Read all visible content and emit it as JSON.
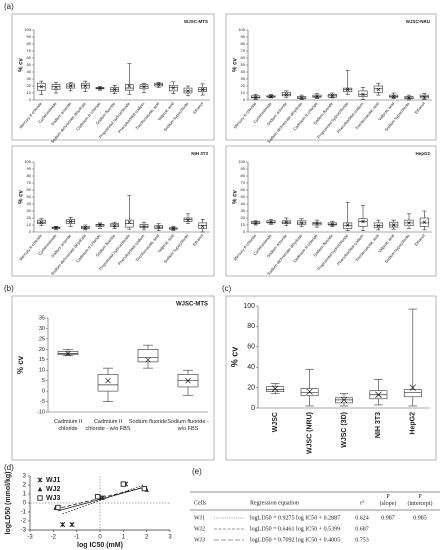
{
  "panel_labels": [
    "(a)",
    "(b)",
    "(c)",
    "(d)",
    "(e)"
  ],
  "chart_data": [
    {
      "type": "box",
      "title": "WJSC-MTS",
      "ylabel": "% cv",
      "categories": [
        "Mercury II chloride",
        "Cycloheximide",
        "Sodium arsenite",
        "Sodium dichromate dihydrate",
        "Cadmium II chloride",
        "Sodium fluoride",
        "Propranolol hydrochloride",
        "Phenobarbital sodium",
        "Trichloroacetic acid",
        "Valproic acid",
        "Sodium hypochlorite",
        "Ethanol"
      ],
      "boxes": [
        [
          8,
          14,
          19,
          24,
          27,
          19
        ],
        [
          10,
          15,
          19,
          22,
          25,
          18
        ],
        [
          13,
          17,
          20,
          23,
          25,
          20
        ],
        [
          12,
          17,
          21,
          24,
          27,
          20
        ],
        [
          14,
          16,
          17,
          18,
          19,
          17
        ],
        [
          9,
          12,
          15,
          18,
          21,
          15
        ],
        [
          8,
          14,
          17,
          22,
          52,
          20
        ],
        [
          11,
          16,
          19,
          22,
          24,
          19
        ],
        [
          18,
          20,
          22,
          24,
          25,
          22
        ],
        [
          9,
          13,
          18,
          21,
          26,
          17
        ],
        [
          6,
          10,
          13,
          17,
          20,
          13
        ],
        [
          7,
          12,
          15,
          18,
          23,
          15
        ]
      ],
      "ylim": [
        0,
        100
      ],
      "yticks": [
        0,
        10,
        20,
        30,
        40,
        50,
        60,
        70,
        80,
        90,
        100
      ],
      "color": "#ffffff"
    },
    {
      "type": "box",
      "title": "WJSC-NRU",
      "ylabel": "% cv",
      "categories": [
        "Mercury II chloride",
        "Cycloheximide",
        "Sodium arsenite",
        "Sodium dichromate dihydrate",
        "Cadmium II chloride",
        "Sodium fluoride",
        "Propranolol hydrochloride",
        "Phenobarbital sodium",
        "Trichloroacetic acid",
        "Valproic acid",
        "Sodium hypochlorite",
        "Ethanol"
      ],
      "boxes": [
        [
          1,
          3,
          4,
          6,
          8,
          4
        ],
        [
          3,
          4,
          5,
          6,
          8,
          5
        ],
        [
          4,
          6,
          8,
          11,
          13,
          8
        ],
        [
          1,
          2,
          3,
          5,
          7,
          3
        ],
        [
          2,
          4,
          5,
          7,
          9,
          5
        ],
        [
          3,
          4,
          6,
          8,
          10,
          6
        ],
        [
          8,
          12,
          15,
          17,
          42,
          15
        ],
        [
          1,
          5,
          8,
          13,
          18,
          8
        ],
        [
          7,
          11,
          16,
          20,
          24,
          15
        ],
        [
          2,
          4,
          5,
          7,
          10,
          5
        ],
        [
          0,
          2,
          3,
          5,
          7,
          3
        ],
        [
          1,
          3,
          5,
          7,
          9,
          4
        ]
      ],
      "ylim": [
        0,
        100
      ],
      "yticks": [
        0,
        10,
        20,
        30,
        40,
        50,
        60,
        70,
        80,
        90,
        100
      ],
      "color": "#ffffff"
    },
    {
      "type": "box",
      "title": "NIH 3T3",
      "ylabel": "% cv",
      "categories": [
        "Mercury II chloride",
        "Cycloheximide",
        "Sodium arsenite",
        "Sodium dichromate dihydrate",
        "Cadmium II chloride",
        "Sodium fluoride",
        "Propranolol hydrochloride",
        "Phenobarbital sodium",
        "Trichloroacetic acid",
        "Valproic acid",
        "Sodium hypochlorite",
        "Ethanol"
      ],
      "boxes": [
        [
          9,
          12,
          14,
          17,
          19,
          14
        ],
        [
          3,
          5,
          6,
          7,
          8,
          6
        ],
        [
          8,
          12,
          15,
          18,
          21,
          15
        ],
        [
          3,
          5,
          6,
          8,
          10,
          6
        ],
        [
          5,
          8,
          10,
          11,
          13,
          10
        ],
        [
          5,
          8,
          10,
          12,
          14,
          9
        ],
        [
          4,
          7,
          12,
          17,
          52,
          14
        ],
        [
          3,
          6,
          8,
          11,
          14,
          8
        ],
        [
          2,
          5,
          7,
          9,
          12,
          7
        ],
        [
          2,
          4,
          5,
          6,
          8,
          5
        ],
        [
          12,
          15,
          18,
          20,
          26,
          17
        ],
        [
          0,
          5,
          9,
          13,
          18,
          8
        ]
      ],
      "ylim": [
        0,
        100
      ],
      "yticks": [
        0,
        10,
        20,
        30,
        40,
        50,
        60,
        70,
        80,
        90,
        100
      ],
      "color": "#ffffff"
    },
    {
      "type": "box",
      "title": "HepG2",
      "ylabel": "% cv",
      "categories": [
        "Mercury II chloride",
        "Cycloheximide",
        "Sodium arsenite",
        "Sodium dichromate dihydrate",
        "Cadmium II chloride",
        "Sodium fluoride",
        "Propranolol hydrochloride",
        "Phenobarbital sodium",
        "Trichloroacetic acid",
        "Valproic acid",
        "Sodium hypochlorite",
        "Ethanol"
      ],
      "boxes": [
        [
          10,
          12,
          13,
          15,
          16,
          13
        ],
        [
          11,
          13,
          14,
          16,
          18,
          14
        ],
        [
          9,
          12,
          14,
          16,
          20,
          14
        ],
        [
          8,
          11,
          13,
          16,
          19,
          13
        ],
        [
          7,
          10,
          12,
          14,
          17,
          12
        ],
        [
          8,
          10,
          11,
          13,
          15,
          11
        ],
        [
          2,
          5,
          9,
          13,
          42,
          10
        ],
        [
          2,
          8,
          15,
          19,
          38,
          15
        ],
        [
          3,
          6,
          9,
          13,
          17,
          9
        ],
        [
          4,
          7,
          10,
          14,
          17,
          10
        ],
        [
          5,
          9,
          13,
          17,
          26,
          13
        ],
        [
          3,
          8,
          13,
          20,
          30,
          14
        ]
      ],
      "ylim": [
        0,
        100
      ],
      "yticks": [
        0,
        10,
        20,
        30,
        40,
        50,
        60,
        70,
        80,
        90,
        100
      ],
      "color": "#ffffff"
    },
    {
      "type": "box",
      "title": "WJSC-MTS",
      "ylabel": "% cv",
      "categories": [
        "Cadmium II chloride",
        "Cadmium II chloride - w/o FBS",
        "Sodium fluoride",
        "Sodium fluoride - w/o FBS"
      ],
      "boxes": [
        [
          17,
          17.5,
          18,
          19,
          20,
          18
        ],
        [
          -5,
          0,
          3,
          8,
          11,
          5
        ],
        [
          11,
          14,
          16,
          20,
          22,
          15
        ],
        [
          -2,
          2,
          5,
          8,
          10,
          5
        ]
      ],
      "ylim": [
        -10,
        35
      ],
      "yticks": [
        -10,
        -5,
        0,
        5,
        10,
        15,
        20,
        25,
        30,
        35
      ],
      "color": "#ffffff"
    },
    {
      "type": "box",
      "ylabel": "% cv",
      "categories": [
        "WJSC",
        "WJSC (NRU)",
        "WJSC (3D)",
        "NIH 3T3",
        "HepG2"
      ],
      "boxes": [
        [
          14,
          16,
          18,
          21,
          24,
          19
        ],
        [
          2,
          12,
          15,
          19,
          38,
          16
        ],
        [
          2,
          5,
          8,
          10,
          14,
          8
        ],
        [
          3,
          9,
          13,
          17,
          28,
          13
        ],
        [
          2,
          11,
          15,
          18,
          97,
          20
        ]
      ],
      "ylim": [
        0,
        100
      ],
      "yticks": [
        0,
        20,
        40,
        60,
        80,
        100
      ],
      "color": "#ffffff"
    },
    {
      "type": "scatter",
      "xlabel": "log IC50 (mM)",
      "ylabel": "logLD50 (mmol/kg)",
      "xlim": [
        -3,
        3
      ],
      "ylim": [
        -3,
        3
      ],
      "xticks": [
        -3,
        -2,
        -1,
        0,
        1,
        2,
        3
      ],
      "yticks": [
        -3,
        -2,
        -1,
        0,
        1,
        2,
        3
      ],
      "zero_lines": true,
      "legend": "top-left",
      "series": [
        {
          "name": "WJ1",
          "marker": "x",
          "color": "#222222",
          "dash": "1.5 1.5",
          "slope": 0.9275,
          "intercept": 0.2887,
          "x": [
            -1.6,
            -1.2,
            0.1,
            1.1,
            1.9
          ],
          "values": [
            -2.4,
            -2.4,
            0.6,
            2.1,
            1.6
          ]
        },
        {
          "name": "WJ2",
          "marker": "triangle",
          "color": "#222222",
          "dash": "4 2",
          "slope": 0.6461,
          "intercept": 0.5399,
          "x": [
            -1.9,
            0,
            1,
            2
          ],
          "values": [
            -0.5,
            0.6,
            2.1,
            1.5
          ]
        },
        {
          "name": "WJ3",
          "marker": "square",
          "color": "#222222",
          "dash": "none",
          "slope": 0.7092,
          "intercept": 0.4005,
          "x": [
            -1.8,
            -0.1,
            1,
            1.9
          ],
          "values": [
            -0.5,
            0.7,
            2.1,
            1.6
          ]
        }
      ]
    }
  ],
  "table": {
    "header": [
      "Cells",
      "Regression equation",
      "r²",
      "P (slope)",
      "P (intercept)"
    ],
    "rows": [
      [
        "WJ1",
        "logLD50 = 0.9275 log IC50 + 0.2887",
        "0.624",
        "0.987",
        "0.985"
      ],
      [
        "WJ2",
        "logLD50 = 0.6461 log IC50 + 0.5399",
        "0.687"
      ],
      [
        "WJ3",
        "logLD50 = 0.7092 log IC50 + 0.4005",
        "0.753"
      ]
    ]
  }
}
